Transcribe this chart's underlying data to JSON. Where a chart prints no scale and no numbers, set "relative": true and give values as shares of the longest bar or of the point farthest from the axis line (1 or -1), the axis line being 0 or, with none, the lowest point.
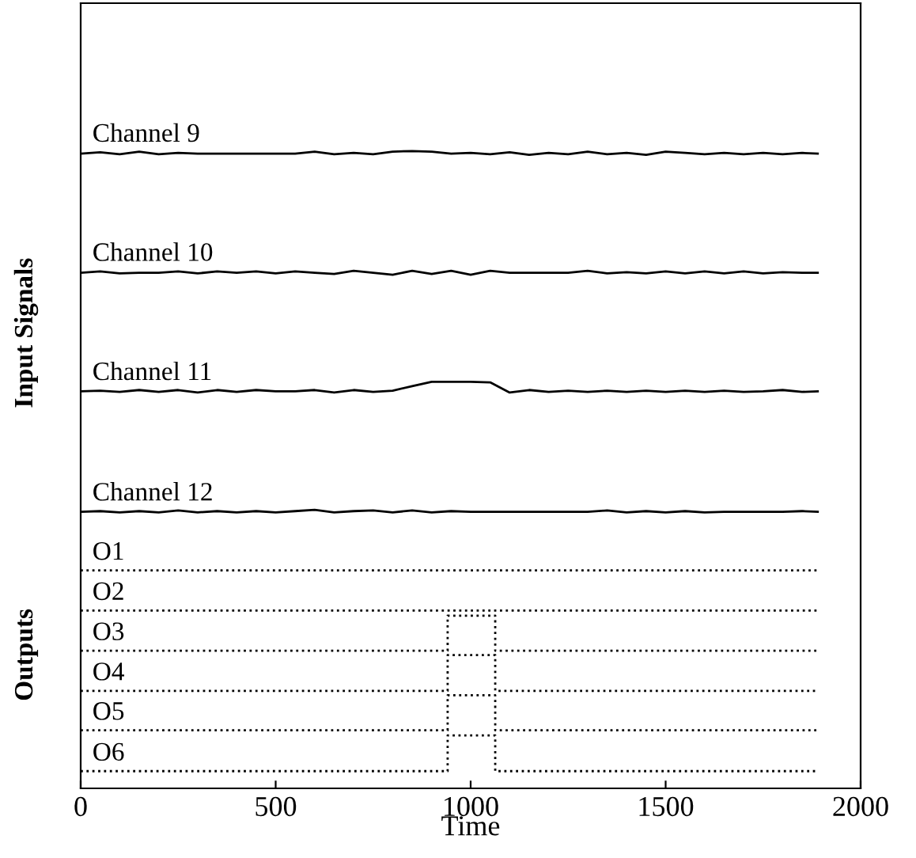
{
  "chart_data": {
    "type": "line",
    "relative": true,
    "xlabel": "Time",
    "ylabel": "Input Signals",
    "annotations": [
      "Outputs"
    ],
    "xlim": [
      0,
      2000
    ],
    "xticks": [
      0,
      500,
      1000,
      1500,
      2000
    ],
    "tick_labels": "x",
    "grid": false,
    "legend": false,
    "marker": "none",
    "line_style": "solid",
    "x": [
      0,
      50,
      100,
      150,
      200,
      250,
      300,
      350,
      400,
      450,
      500,
      550,
      600,
      650,
      700,
      750,
      800,
      850,
      900,
      950,
      1000,
      1050,
      1100,
      1150,
      1200,
      1250,
      1300,
      1350,
      1400,
      1450,
      1500,
      1550,
      1600,
      1650,
      1700,
      1750,
      1800,
      1850,
      1890
    ],
    "series": [
      {
        "name": "Channel 9",
        "color": "#000000",
        "values": [
          0.996,
          0.998,
          0.995,
          0.999,
          0.995,
          0.997,
          0.996,
          0.996,
          0.996,
          0.996,
          0.996,
          0.996,
          0.999,
          0.995,
          0.997,
          0.995,
          0.999,
          1.0,
          0.999,
          0.996,
          0.997,
          0.995,
          0.998,
          0.994,
          0.997,
          0.995,
          0.999,
          0.995,
          0.997,
          0.994,
          0.999,
          0.997,
          0.995,
          0.997,
          0.995,
          0.997,
          0.995,
          0.997,
          0.996
        ]
      },
      {
        "name": "Channel 10",
        "color": "#000000",
        "values": [
          0.809,
          0.811,
          0.808,
          0.809,
          0.809,
          0.811,
          0.808,
          0.811,
          0.809,
          0.811,
          0.808,
          0.811,
          0.809,
          0.807,
          0.812,
          0.809,
          0.806,
          0.812,
          0.807,
          0.812,
          0.806,
          0.812,
          0.809,
          0.809,
          0.809,
          0.809,
          0.812,
          0.808,
          0.81,
          0.808,
          0.811,
          0.808,
          0.811,
          0.808,
          0.811,
          0.808,
          0.81,
          0.809,
          0.809
        ]
      },
      {
        "name": "Channel 11",
        "color": "#000000",
        "values": [
          0.623,
          0.624,
          0.622,
          0.625,
          0.622,
          0.625,
          0.621,
          0.625,
          0.622,
          0.625,
          0.623,
          0.623,
          0.625,
          0.621,
          0.625,
          0.622,
          0.624,
          0.631,
          0.638,
          0.638,
          0.638,
          0.637,
          0.621,
          0.625,
          0.622,
          0.624,
          0.622,
          0.624,
          0.622,
          0.624,
          0.622,
          0.624,
          0.622,
          0.624,
          0.622,
          0.623,
          0.625,
          0.622,
          0.623
        ]
      },
      {
        "name": "Channel 12",
        "color": "#000000",
        "values": [
          0.434,
          0.435,
          0.433,
          0.435,
          0.433,
          0.436,
          0.433,
          0.435,
          0.433,
          0.435,
          0.433,
          0.435,
          0.437,
          0.433,
          0.435,
          0.436,
          0.433,
          0.436,
          0.433,
          0.435,
          0.434,
          0.434,
          0.434,
          0.434,
          0.434,
          0.434,
          0.434,
          0.436,
          0.433,
          0.435,
          0.433,
          0.435,
          0.433,
          0.434,
          0.434,
          0.434,
          0.434,
          0.435,
          0.434
        ]
      },
      {
        "name": "O1",
        "color": "#000000",
        "line_style": "dotted",
        "x": [
          0,
          1890
        ],
        "values": [
          0.342,
          0.342
        ]
      },
      {
        "name": "O2",
        "color": "#000000",
        "line_style": "dotted",
        "x": [
          0,
          1890
        ],
        "values": [
          0.279,
          0.279
        ]
      },
      {
        "name": "O3",
        "color": "#000000",
        "line_style": "dotted",
        "x": [
          0,
          941,
          941,
          1063,
          1063,
          1890
        ],
        "values": [
          0.216,
          0.216,
          0.271,
          0.271,
          0.216,
          0.216
        ]
      },
      {
        "name": "O4",
        "color": "#000000",
        "line_style": "dotted",
        "x": [
          0,
          941,
          941,
          1063,
          1063,
          1890
        ],
        "values": [
          0.153,
          0.153,
          0.209,
          0.209,
          0.153,
          0.153
        ]
      },
      {
        "name": "O5",
        "color": "#000000",
        "line_style": "dotted",
        "x": [
          0,
          941,
          941,
          1063,
          1063,
          1890
        ],
        "values": [
          0.091,
          0.091,
          0.146,
          0.146,
          0.091,
          0.091
        ]
      },
      {
        "name": "O6",
        "color": "#000000",
        "line_style": "dotted",
        "x": [
          0,
          941,
          941,
          1063,
          1063,
          1890
        ],
        "values": [
          0.027,
          0.027,
          0.083,
          0.083,
          0.027,
          0.027
        ]
      }
    ]
  }
}
